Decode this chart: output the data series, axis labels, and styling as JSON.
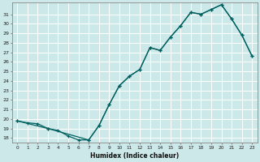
{
  "xlabel": "Humidex (Indice chaleur)",
  "bg_color": "#cce8e8",
  "grid_color": "#ffffff",
  "line_color": "#006060",
  "xlim": [
    -0.5,
    23.5
  ],
  "ylim": [
    17.5,
    32.2
  ],
  "xticks": [
    0,
    1,
    2,
    3,
    4,
    5,
    6,
    7,
    8,
    9,
    10,
    11,
    12,
    13,
    14,
    15,
    16,
    17,
    18,
    19,
    20,
    21,
    22,
    23
  ],
  "yticks": [
    18,
    19,
    20,
    21,
    22,
    23,
    24,
    25,
    26,
    27,
    28,
    29,
    30,
    31
  ],
  "curve1_x": [
    0,
    1,
    2,
    3,
    4,
    5,
    6,
    7,
    8,
    9,
    10,
    11,
    12,
    13,
    14,
    15,
    16,
    17,
    18,
    19,
    20,
    21,
    22,
    23
  ],
  "curve1_y": [
    19.8,
    19.6,
    19.5,
    19.0,
    18.8,
    18.2,
    17.8,
    17.8,
    19.3,
    21.5,
    23.5,
    24.5,
    25.2,
    27.5,
    27.2,
    28.6,
    29.8,
    31.2,
    31.0,
    31.5,
    32.0,
    30.5,
    28.8,
    26.6
  ],
  "curve2_x": [
    0,
    3,
    7,
    8,
    9,
    10,
    11,
    12,
    13,
    14,
    15,
    16,
    17,
    18,
    19,
    20,
    21,
    22,
    23
  ],
  "curve2_y": [
    19.8,
    19.0,
    17.8,
    19.3,
    21.5,
    23.5,
    24.5,
    25.2,
    27.5,
    27.2,
    28.6,
    29.8,
    31.2,
    31.0,
    31.5,
    32.0,
    30.5,
    28.8,
    26.6
  ]
}
